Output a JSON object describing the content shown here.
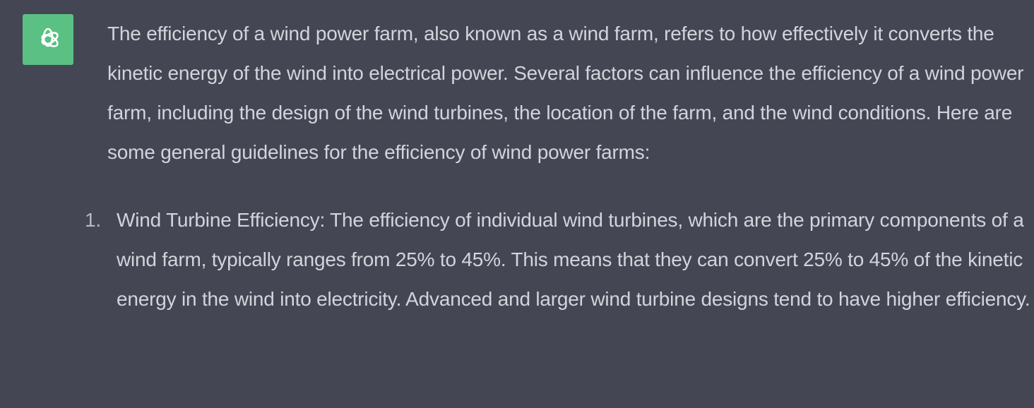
{
  "assistant": {
    "avatar_icon": "openai-logo-icon",
    "avatar_color": "#5ac083"
  },
  "message": {
    "intro": "The efficiency of a wind power farm, also known as a wind farm, refers to how effectively it converts the kinetic energy of the wind into electrical power. Several factors can influence the efficiency of a wind power farm, including the design of the wind turbines, the location of the farm, and the wind conditions. Here are some general guidelines for the efficiency of wind power farms:",
    "list": [
      {
        "number": "1.",
        "text": "Wind Turbine Efficiency: The efficiency of individual wind turbines, which are the primary components of a wind farm, typically ranges from 25% to 45%. This means that they can convert 25% to 45% of the kinetic energy in the wind into electricity. Advanced and larger wind turbine designs tend to have higher efficiency."
      }
    ]
  }
}
